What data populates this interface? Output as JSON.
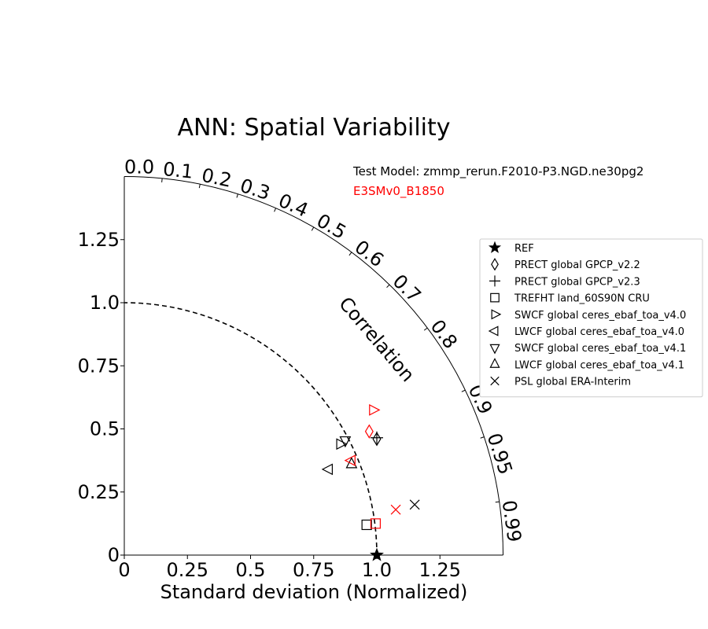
{
  "chart_data": {
    "type": "scatter",
    "subtype": "taylor-diagram",
    "title": "ANN: Spatial Variability",
    "xlabel": "Standard deviation (Normalized)",
    "corr_label": "Correlation",
    "std_range": [
      0,
      1.5
    ],
    "std_ticks": [
      "0",
      "0.25",
      "0.5",
      "0.75",
      "1.0",
      "1.25"
    ],
    "y_ticks": [
      "0",
      "0.25",
      "0.5",
      "0.75",
      "1.0",
      "1.25"
    ],
    "corr_ticks": [
      "0.0",
      "0.1",
      "0.2",
      "0.3",
      "0.4",
      "0.5",
      "0.6",
      "0.7",
      "0.8",
      "0.9",
      "0.95",
      "0.99"
    ],
    "reference_std": 1.0,
    "test_model_label": "Test Model: zmmp_rerun.F2010-P3.NGD.ne30pg2",
    "ref_model_label": "E3SMv0_B1850",
    "colors": {
      "test": "#000000",
      "ref_model": "#ff0000"
    },
    "legend_position": "right",
    "legend": [
      {
        "label": "REF",
        "marker": "star"
      },
      {
        "label": "PRECT global GPCP_v2.2",
        "marker": "diamond"
      },
      {
        "label": "PRECT global GPCP_v2.3",
        "marker": "plus"
      },
      {
        "label": "TREFHT land_60S90N CRU",
        "marker": "square"
      },
      {
        "label": "SWCF global ceres_ebaf_toa_v4.0",
        "marker": "triangle-right"
      },
      {
        "label": "LWCF global ceres_ebaf_toa_v4.0",
        "marker": "triangle-left"
      },
      {
        "label": "SWCF global ceres_ebaf_toa_v4.1",
        "marker": "triangle-down"
      },
      {
        "label": "LWCF global ceres_ebaf_toa_v4.1",
        "marker": "triangle-up"
      },
      {
        "label": "PSL global ERA-Interim",
        "marker": "x"
      }
    ],
    "points": [
      {
        "marker": "star",
        "model": "test",
        "x": 1.0,
        "y": 0.0
      },
      {
        "marker": "diamond",
        "model": "test",
        "x": 1.0,
        "y": 0.46
      },
      {
        "marker": "plus",
        "model": "test",
        "x": 1.0,
        "y": 0.465
      },
      {
        "marker": "square",
        "model": "test",
        "x": 0.96,
        "y": 0.12
      },
      {
        "marker": "triangle-right",
        "model": "test",
        "x": 0.855,
        "y": 0.44
      },
      {
        "marker": "triangle-left",
        "model": "test",
        "x": 0.81,
        "y": 0.34
      },
      {
        "marker": "triangle-down",
        "model": "test",
        "x": 0.875,
        "y": 0.455
      },
      {
        "marker": "triangle-up",
        "model": "test",
        "x": 0.9,
        "y": 0.36
      },
      {
        "marker": "x",
        "model": "test",
        "x": 1.15,
        "y": 0.2
      },
      {
        "marker": "diamond",
        "model": "ref_model",
        "x": 0.97,
        "y": 0.49
      },
      {
        "marker": "triangle-right",
        "model": "ref_model",
        "x": 0.985,
        "y": 0.575
      },
      {
        "marker": "triangle-left",
        "model": "ref_model",
        "x": 0.9,
        "y": 0.375
      },
      {
        "marker": "square",
        "model": "ref_model",
        "x": 0.995,
        "y": 0.125
      },
      {
        "marker": "x",
        "model": "ref_model",
        "x": 1.075,
        "y": 0.18
      }
    ]
  }
}
